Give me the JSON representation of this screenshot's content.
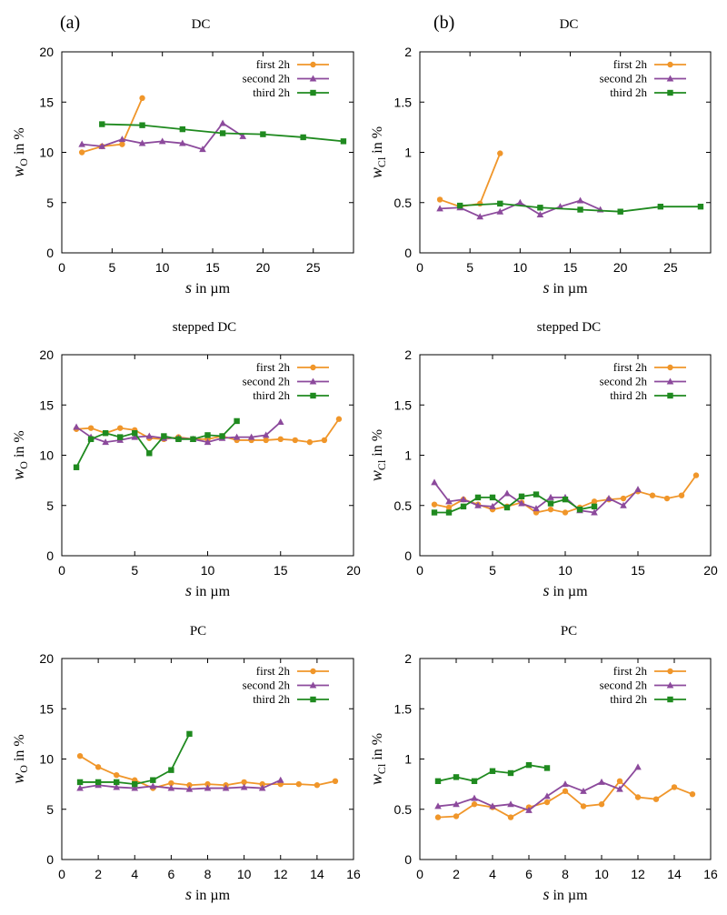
{
  "panel_labels": [
    "(a)",
    "(b)"
  ],
  "colors": {
    "first": "#f0962a",
    "second": "#8c4a9c",
    "third": "#1f8a1f"
  },
  "chart_data": [
    {
      "type": "line",
      "title": "DC",
      "panel_label": "(a)",
      "xlabel": {
        "var": "s",
        "unit": " in µm"
      },
      "ylabel": {
        "var": "w",
        "sub": "O",
        "unit": " in %"
      },
      "xlim": [
        0,
        29
      ],
      "ylim": [
        0,
        20
      ],
      "xticks": [
        0,
        5,
        10,
        15,
        20,
        25
      ],
      "yticks": [
        0,
        5,
        10,
        15,
        20
      ],
      "ytick_labels": [
        "0",
        "5",
        "10",
        "15",
        "20"
      ],
      "legend": "top-right",
      "series": [
        {
          "name": "first 2h",
          "marker": "circle",
          "color": "first",
          "x": [
            2,
            4,
            6,
            8
          ],
          "y": [
            10.0,
            10.6,
            10.8,
            15.4
          ]
        },
        {
          "name": "second 2h",
          "marker": "triangle",
          "color": "second",
          "x": [
            2,
            4,
            6,
            8,
            10,
            12,
            14,
            16,
            18
          ],
          "y": [
            10.8,
            10.6,
            11.3,
            10.9,
            11.1,
            10.9,
            10.3,
            12.9,
            11.6
          ]
        },
        {
          "name": "third 2h",
          "marker": "square",
          "color": "third",
          "x": [
            4,
            8,
            12,
            16,
            20,
            24,
            28
          ],
          "y": [
            12.8,
            12.7,
            12.3,
            11.9,
            11.8,
            11.5,
            11.1
          ]
        }
      ]
    },
    {
      "type": "line",
      "title": "DC",
      "panel_label": "(b)",
      "xlabel": {
        "var": "s",
        "unit": " in µm"
      },
      "ylabel": {
        "var": "w",
        "sub": "Cl",
        "unit": " in %"
      },
      "xlim": [
        0,
        29
      ],
      "ylim": [
        0,
        2
      ],
      "xticks": [
        0,
        5,
        10,
        15,
        20,
        25
      ],
      "yticks": [
        0,
        0.5,
        1,
        1.5,
        2
      ],
      "ytick_labels": [
        "0",
        "0.5",
        "1",
        "1.5",
        "2"
      ],
      "legend": "top-right",
      "series": [
        {
          "name": "first 2h",
          "marker": "circle",
          "color": "first",
          "x": [
            2,
            4,
            6,
            8
          ],
          "y": [
            0.53,
            0.46,
            0.49,
            0.99
          ]
        },
        {
          "name": "second 2h",
          "marker": "triangle",
          "color": "second",
          "x": [
            2,
            4,
            6,
            8,
            10,
            12,
            14,
            16,
            18
          ],
          "y": [
            0.44,
            0.45,
            0.36,
            0.41,
            0.5,
            0.38,
            0.46,
            0.52,
            0.43
          ]
        },
        {
          "name": "third 2h",
          "marker": "square",
          "color": "third",
          "x": [
            4,
            8,
            12,
            16,
            20,
            24,
            28
          ],
          "y": [
            0.47,
            0.49,
            0.45,
            0.43,
            0.41,
            0.46,
            0.46
          ]
        }
      ]
    },
    {
      "type": "line",
      "title": "stepped DC",
      "xlabel": {
        "var": "s",
        "unit": " in µm"
      },
      "ylabel": {
        "var": "w",
        "sub": "O",
        "unit": " in %"
      },
      "xlim": [
        0,
        20
      ],
      "ylim": [
        0,
        20
      ],
      "xticks": [
        0,
        5,
        10,
        15,
        20
      ],
      "yticks": [
        0,
        5,
        10,
        15,
        20
      ],
      "ytick_labels": [
        "0",
        "5",
        "10",
        "15",
        "20"
      ],
      "legend": "top-right",
      "series": [
        {
          "name": "first 2h",
          "marker": "circle",
          "color": "first",
          "x": [
            1,
            2,
            3,
            4,
            5,
            6,
            7,
            8,
            9,
            10,
            11,
            12,
            13,
            14,
            15,
            16,
            17,
            18,
            19
          ],
          "y": [
            12.6,
            12.7,
            12.2,
            12.7,
            12.5,
            11.7,
            11.6,
            11.8,
            11.6,
            11.6,
            11.9,
            11.5,
            11.5,
            11.5,
            11.6,
            11.5,
            11.3,
            11.5,
            13.6
          ]
        },
        {
          "name": "second 2h",
          "marker": "triangle",
          "color": "second",
          "x": [
            1,
            2,
            3,
            4,
            5,
            6,
            7,
            8,
            9,
            10,
            11,
            12,
            13,
            14,
            15
          ],
          "y": [
            12.8,
            11.8,
            11.3,
            11.5,
            11.8,
            11.9,
            11.7,
            11.7,
            11.6,
            11.3,
            11.7,
            11.8,
            11.8,
            12.0,
            13.3
          ]
        },
        {
          "name": "third 2h",
          "marker": "square",
          "color": "third",
          "x": [
            1,
            2,
            3,
            4,
            5,
            6,
            7,
            8,
            9,
            10,
            11,
            12
          ],
          "y": [
            8.8,
            11.6,
            12.2,
            11.8,
            12.2,
            10.2,
            11.9,
            11.6,
            11.6,
            12.0,
            11.9,
            13.4
          ]
        }
      ]
    },
    {
      "type": "line",
      "title": "stepped DC",
      "xlabel": {
        "var": "s",
        "unit": " in µm"
      },
      "ylabel": {
        "var": "w",
        "sub": "Cl",
        "unit": " in %"
      },
      "xlim": [
        0,
        20
      ],
      "ylim": [
        0,
        2
      ],
      "xticks": [
        0,
        5,
        10,
        15,
        20
      ],
      "yticks": [
        0,
        0.5,
        1,
        1.5,
        2
      ],
      "ytick_labels": [
        "0",
        "0.5",
        "1",
        "1.5",
        "2"
      ],
      "legend": "top-right",
      "series": [
        {
          "name": "first 2h",
          "marker": "circle",
          "color": "first",
          "x": [
            1,
            2,
            3,
            4,
            5,
            6,
            7,
            8,
            9,
            10,
            11,
            12,
            13,
            14,
            15,
            16,
            17,
            18,
            19
          ],
          "y": [
            0.51,
            0.48,
            0.56,
            0.51,
            0.46,
            0.49,
            0.53,
            0.43,
            0.46,
            0.43,
            0.48,
            0.54,
            0.56,
            0.57,
            0.64,
            0.6,
            0.57,
            0.6,
            0.8
          ]
        },
        {
          "name": "second 2h",
          "marker": "triangle",
          "color": "second",
          "x": [
            1,
            2,
            3,
            4,
            5,
            6,
            7,
            8,
            9,
            10,
            11,
            12,
            13,
            14,
            15
          ],
          "y": [
            0.73,
            0.54,
            0.56,
            0.5,
            0.49,
            0.62,
            0.52,
            0.47,
            0.58,
            0.58,
            0.45,
            0.43,
            0.57,
            0.5,
            0.66
          ]
        },
        {
          "name": "third 2h",
          "marker": "square",
          "color": "third",
          "x": [
            1,
            2,
            3,
            4,
            5,
            6,
            7,
            8,
            9,
            10,
            11,
            12
          ],
          "y": [
            0.43,
            0.43,
            0.49,
            0.58,
            0.58,
            0.48,
            0.59,
            0.61,
            0.52,
            0.56,
            0.46,
            0.49
          ]
        }
      ]
    },
    {
      "type": "line",
      "title": "PC",
      "xlabel": {
        "var": "s",
        "unit": " in µm"
      },
      "ylabel": {
        "var": "w",
        "sub": "O",
        "unit": " in %"
      },
      "xlim": [
        0,
        16
      ],
      "ylim": [
        0,
        20
      ],
      "xticks": [
        0,
        2,
        4,
        6,
        8,
        10,
        12,
        14,
        16
      ],
      "yticks": [
        0,
        5,
        10,
        15,
        20
      ],
      "ytick_labels": [
        "0",
        "5",
        "10",
        "15",
        "20"
      ],
      "legend": "top-right",
      "series": [
        {
          "name": "first 2h",
          "marker": "circle",
          "color": "first",
          "x": [
            1,
            2,
            3,
            4,
            5,
            6,
            7,
            8,
            9,
            10,
            11,
            12,
            13,
            14,
            15
          ],
          "y": [
            10.3,
            9.2,
            8.4,
            7.9,
            7.1,
            7.6,
            7.4,
            7.5,
            7.4,
            7.7,
            7.5,
            7.5,
            7.5,
            7.4,
            7.8
          ]
        },
        {
          "name": "second 2h",
          "marker": "triangle",
          "color": "second",
          "x": [
            1,
            2,
            3,
            4,
            5,
            6,
            7,
            8,
            9,
            10,
            11,
            12
          ],
          "y": [
            7.1,
            7.4,
            7.2,
            7.1,
            7.3,
            7.1,
            7.0,
            7.1,
            7.1,
            7.2,
            7.1,
            7.9
          ]
        },
        {
          "name": "third 2h",
          "marker": "square",
          "color": "third",
          "x": [
            1,
            2,
            3,
            4,
            5,
            6,
            7
          ],
          "y": [
            7.7,
            7.7,
            7.7,
            7.5,
            7.9,
            8.9,
            12.5
          ]
        }
      ]
    },
    {
      "type": "line",
      "title": "PC",
      "xlabel": {
        "var": "s",
        "unit": " in µm"
      },
      "ylabel": {
        "var": "w",
        "sub": "Cl",
        "unit": " in %"
      },
      "xlim": [
        0,
        16
      ],
      "ylim": [
        0,
        2
      ],
      "xticks": [
        0,
        2,
        4,
        6,
        8,
        10,
        12,
        14,
        16
      ],
      "yticks": [
        0,
        0.5,
        1,
        1.5,
        2
      ],
      "ytick_labels": [
        "0",
        "0.5",
        "1",
        "1.5",
        "2"
      ],
      "legend": "top-right",
      "series": [
        {
          "name": "first 2h",
          "marker": "circle",
          "color": "first",
          "x": [
            1,
            2,
            3,
            4,
            5,
            6,
            7,
            8,
            9,
            10,
            11,
            12,
            13,
            14,
            15
          ],
          "y": [
            0.42,
            0.43,
            0.55,
            0.52,
            0.42,
            0.52,
            0.57,
            0.68,
            0.53,
            0.55,
            0.78,
            0.62,
            0.6,
            0.72,
            0.65
          ]
        },
        {
          "name": "second 2h",
          "marker": "triangle",
          "color": "second",
          "x": [
            1,
            2,
            3,
            4,
            5,
            6,
            7,
            8,
            9,
            10,
            11,
            12
          ],
          "y": [
            0.53,
            0.55,
            0.61,
            0.53,
            0.55,
            0.49,
            0.63,
            0.75,
            0.68,
            0.77,
            0.7,
            0.92
          ]
        },
        {
          "name": "third 2h",
          "marker": "square",
          "color": "third",
          "x": [
            1,
            2,
            3,
            4,
            5,
            6,
            7
          ],
          "y": [
            0.78,
            0.82,
            0.78,
            0.88,
            0.86,
            0.94,
            0.91
          ]
        }
      ]
    }
  ]
}
